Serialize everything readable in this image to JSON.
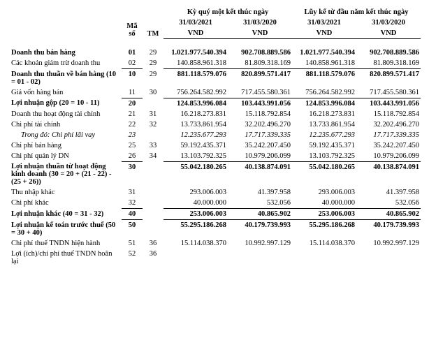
{
  "header": {
    "col_ms": "Mã số",
    "col_tm": "TM",
    "period_a": "Kỳ quý một kết thúc ngày",
    "period_b": "Lũy kế từ đầu năm kết thúc ngày",
    "d1": "31/03/2021",
    "d2": "31/03/2020",
    "unit": "VND"
  },
  "rows": [
    {
      "k": "r1",
      "cls": "bold",
      "lbl": "Doanh thu bán hàng",
      "ms": "01",
      "tm": "29",
      "a1": "1.021.977.540.394",
      "a2": "902.708.889.586",
      "b1": "1.021.977.540.394",
      "b2": "902.708.889.586"
    },
    {
      "k": "r2",
      "cls": "",
      "lbl": "Các khoản giảm trừ doanh thu",
      "ms": "02",
      "tm": "29",
      "a1": "140.858.961.318",
      "a2": "81.809.318.169",
      "b1": "140.858.961.318",
      "b2": "81.809.318.169"
    },
    {
      "k": "r3",
      "cls": "bold sectop",
      "lbl": "Doanh thu thuần về bán hàng (10 = 01 - 02)",
      "ms": "10",
      "tm": "29",
      "a1": "881.118.579.076",
      "a2": "820.899.571.417",
      "b1": "881.118.579.076",
      "b2": "820.899.571.417"
    },
    {
      "k": "r4",
      "cls": "",
      "lbl": "Giá vốn hàng bán",
      "ms": "11",
      "tm": "30",
      "a1": "756.264.582.992",
      "a2": "717.455.580.361",
      "b1": "756.264.582.992",
      "b2": "717.455.580.361"
    },
    {
      "k": "r5",
      "cls": "bold sectop",
      "lbl": "Lợi nhuận gộp (20 = 10 - 11)",
      "ms": "20",
      "tm": "",
      "a1": "124.853.996.084",
      "a2": "103.443.991.056",
      "b1": "124.853.996.084",
      "b2": "103.443.991.056"
    },
    {
      "k": "r6",
      "cls": "",
      "lbl": "Doanh thu hoạt động tài chính",
      "ms": "21",
      "tm": "31",
      "a1": "16.218.273.831",
      "a2": "15.118.792.854",
      "b1": "16.218.273.831",
      "b2": "15.118.792.854"
    },
    {
      "k": "r7",
      "cls": "",
      "lbl": "Chi phí tài chính",
      "ms": "22",
      "tm": "32",
      "a1": "13.733.861.954",
      "a2": "32.202.496.270",
      "b1": "13.733.861.954",
      "b2": "32.202.496.270"
    },
    {
      "k": "r8",
      "cls": "ital",
      "lbl": "Trong đó: Chi phí lãi vay",
      "ms": "23",
      "tm": "",
      "a1": "12.235.677.293",
      "a2": "17.717.339.335",
      "b1": "12.235.677.293",
      "b2": "17.717.339.335"
    },
    {
      "k": "r9",
      "cls": "",
      "lbl": "Chi phí bán hàng",
      "ms": "25",
      "tm": "33",
      "a1": "59.192.435.371",
      "a2": "35.242.207.450",
      "b1": "59.192.435.371",
      "b2": "35.242.207.450"
    },
    {
      "k": "r10",
      "cls": "",
      "lbl": "Chi phí quản lý DN",
      "ms": "26",
      "tm": "34",
      "a1": "13.103.792.325",
      "a2": "10.979.206.099",
      "b1": "13.103.792.325",
      "b2": "10.979.206.099"
    },
    {
      "k": "r11",
      "cls": "bold sectop",
      "lbl": "Lợi nhuận thuần từ hoạt động kinh doanh (30 = 20 + (21 - 22) - (25 + 26))",
      "ms": "30",
      "tm": "",
      "a1": "55.042.180.265",
      "a2": "40.138.874.091",
      "b1": "55.042.180.265",
      "b2": "40.138.874.091"
    },
    {
      "k": "r12",
      "cls": "",
      "lbl": "Thu nhập khác",
      "ms": "31",
      "tm": "",
      "a1": "293.006.003",
      "a2": "41.397.958",
      "b1": "293.006.003",
      "b2": "41.397.958"
    },
    {
      "k": "r13",
      "cls": "",
      "lbl": "Chi phí khác",
      "ms": "32",
      "tm": "",
      "a1": "40.000.000",
      "a2": "532.056",
      "b1": "40.000.000",
      "b2": "532.056"
    },
    {
      "k": "r14",
      "cls": "bold sectop",
      "lbl": "Lợi nhuận khác (40 = 31 - 32)",
      "ms": "40",
      "tm": "",
      "a1": "253.006.003",
      "a2": "40.865.902",
      "b1": "253.006.003",
      "b2": "40.865.902"
    },
    {
      "k": "r15",
      "cls": "bold sectop",
      "lbl": "Lợi nhuận kế toán trước thuế (50 = 30 + 40)",
      "ms": "50",
      "tm": "",
      "a1": "55.295.186.268",
      "a2": "40.179.739.993",
      "b1": "55.295.186.268",
      "b2": "40.179.739.993"
    },
    {
      "k": "r16",
      "cls": "",
      "lbl": "Chi phí thuế TNDN hiện hành",
      "ms": "51",
      "tm": "36",
      "a1": "15.114.038.370",
      "a2": "10.992.997.129",
      "b1": "15.114.038.370",
      "b2": "10.992.997.129"
    },
    {
      "k": "r17",
      "cls": "",
      "lbl": "Lợi (ích)/chi phí thuế TNDN hoãn lại",
      "ms": "52",
      "tm": "36",
      "a1": "",
      "a2": "",
      "b1": "",
      "b2": ""
    }
  ]
}
